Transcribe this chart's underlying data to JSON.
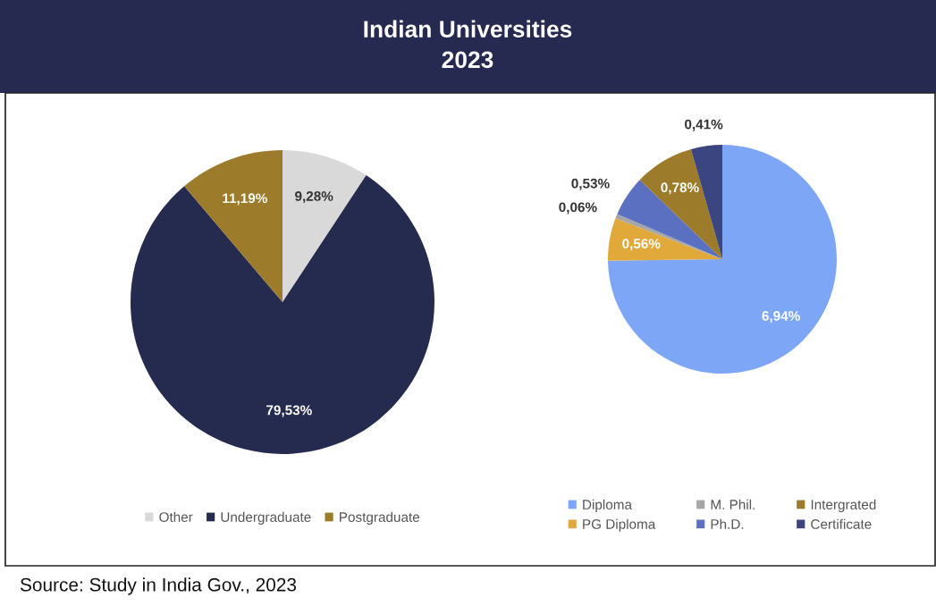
{
  "chart_data": [
    {
      "type": "pie",
      "title": "Indian Universities\n2023",
      "categories": [
        "Other",
        "Undergraduate",
        "Postgraduate"
      ],
      "values": [
        9.28,
        79.53,
        11.19
      ],
      "colors": [
        "#d9d9d9",
        "#252a4f",
        "#9c7b2a"
      ],
      "value_labels": [
        "9,28%",
        "79,53%",
        "11,19%"
      ],
      "legend": "bottom",
      "annotations": [
        "Source: Study in India Gov., 2023"
      ]
    },
    {
      "type": "pie",
      "categories": [
        "Diploma",
        "PG Diploma",
        "M. Phil.",
        "Ph.D.",
        "Intergrated",
        "Certificate"
      ],
      "values": [
        6.94,
        0.56,
        0.06,
        0.53,
        0.78,
        0.41
      ],
      "colors": [
        "#7ea6f6",
        "#e0a93a",
        "#a6a6a6",
        "#5b70c0",
        "#9c7b2a",
        "#3b4580"
      ],
      "value_labels": [
        "6,94%",
        "0,56%",
        "0,06%",
        "0,53%",
        "0,78%",
        "0,41%"
      ],
      "legend": "bottom"
    }
  ]
}
